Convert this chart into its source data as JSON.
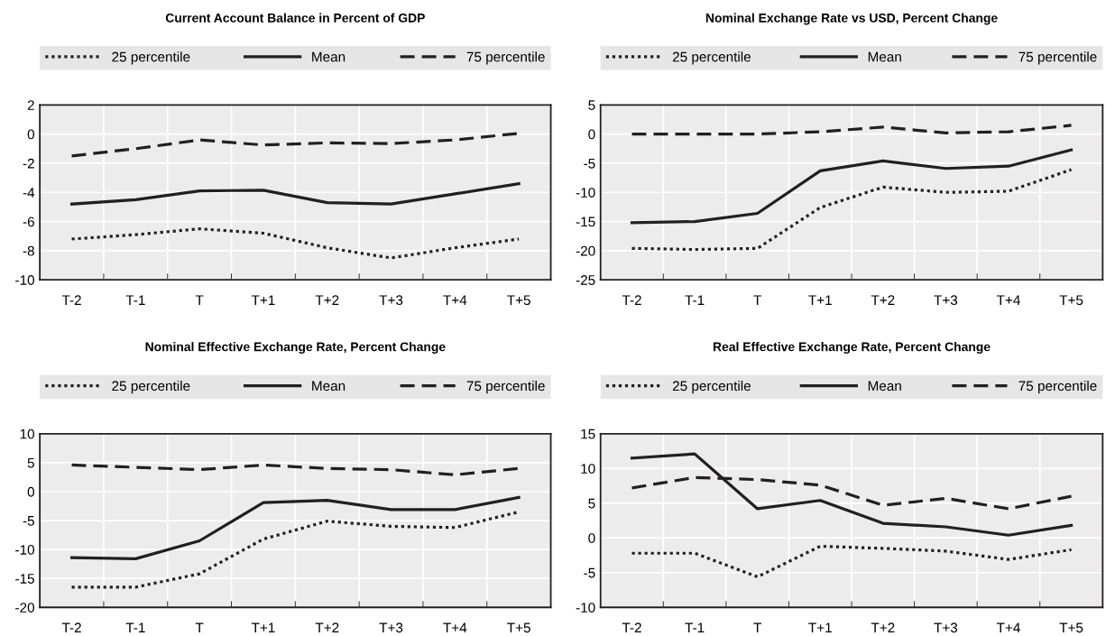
{
  "chart_data": [
    {
      "type": "line",
      "title": "Current Account Balance in Percent of GDP",
      "categories": [
        "T-2",
        "T-1",
        "T",
        "T+1",
        "T+2",
        "T+3",
        "T+4",
        "T+5"
      ],
      "ylim": [
        -10,
        2
      ],
      "yticks": [
        -10,
        -8,
        -6,
        -4,
        -2,
        0,
        2
      ],
      "grid": true,
      "legend": "top",
      "series": [
        {
          "name": "25 percentile",
          "color": "#231f20",
          "line_style": "dotted",
          "values": [
            -7.2,
            -6.9,
            -6.5,
            -6.8,
            -7.8,
            -8.5,
            -7.8,
            -7.2
          ]
        },
        {
          "name": "Mean",
          "color": "#231f20",
          "line_style": "solid",
          "values": [
            -4.8,
            -4.5,
            -3.9,
            -3.85,
            -4.7,
            -4.8,
            -4.1,
            -3.4
          ]
        },
        {
          "name": "75 percentile",
          "color": "#231f20",
          "line_style": "dashed",
          "values": [
            -1.5,
            -1.0,
            -0.4,
            -0.75,
            -0.6,
            -0.65,
            -0.4,
            0.05
          ]
        }
      ]
    },
    {
      "type": "line",
      "title": "Nominal Exchange Rate vs USD, Percent Change",
      "categories": [
        "T-2",
        "T-1",
        "T",
        "T+1",
        "T+2",
        "T+3",
        "T+4",
        "T+5"
      ],
      "ylim": [
        -25,
        5
      ],
      "yticks": [
        -25,
        -20,
        -15,
        -10,
        -5,
        0,
        5
      ],
      "grid": true,
      "legend": "top",
      "series": [
        {
          "name": "25 percentile",
          "color": "#231f20",
          "line_style": "dotted",
          "values": [
            -19.6,
            -19.8,
            -19.6,
            -12.6,
            -9.1,
            -10.0,
            -9.8,
            -6.1
          ]
        },
        {
          "name": "Mean",
          "color": "#231f20",
          "line_style": "solid",
          "values": [
            -15.2,
            -15.0,
            -13.6,
            -6.3,
            -4.6,
            -5.9,
            -5.5,
            -2.7
          ]
        },
        {
          "name": "75 percentile",
          "color": "#231f20",
          "line_style": "dashed",
          "values": [
            0.0,
            0.0,
            0.0,
            0.4,
            1.2,
            0.2,
            0.4,
            1.5
          ]
        }
      ]
    },
    {
      "type": "line",
      "title": "Nominal Effective Exchange Rate, Percent Change",
      "categories": [
        "T-2",
        "T-1",
        "T",
        "T+1",
        "T+2",
        "T+3",
        "T+4",
        "T+5"
      ],
      "ylim": [
        -20,
        10
      ],
      "yticks": [
        -20,
        -15,
        -10,
        -5,
        0,
        5,
        10
      ],
      "grid": true,
      "legend": "top",
      "series": [
        {
          "name": "25 percentile",
          "color": "#231f20",
          "line_style": "dotted",
          "values": [
            -16.5,
            -16.5,
            -14.2,
            -8.2,
            -5.1,
            -6.0,
            -6.2,
            -3.5
          ]
        },
        {
          "name": "Mean",
          "color": "#231f20",
          "line_style": "solid",
          "values": [
            -11.4,
            -11.6,
            -8.5,
            -1.9,
            -1.5,
            -3.1,
            -3.1,
            -1.0
          ]
        },
        {
          "name": "75 percentile",
          "color": "#231f20",
          "line_style": "dashed",
          "values": [
            4.6,
            4.2,
            3.8,
            4.6,
            4.0,
            3.8,
            2.9,
            4.0
          ]
        }
      ]
    },
    {
      "type": "line",
      "title": "Real Effective Exchange Rate, Percent Change",
      "categories": [
        "T-2",
        "T-1",
        "T",
        "T+1",
        "T+2",
        "T+3",
        "T+4",
        "T+5"
      ],
      "ylim": [
        -10,
        15
      ],
      "yticks": [
        -10,
        -5,
        0,
        5,
        10,
        15
      ],
      "grid": true,
      "legend": "top",
      "series": [
        {
          "name": "25 percentile",
          "color": "#231f20",
          "line_style": "dotted",
          "values": [
            -2.2,
            -2.2,
            -5.6,
            -1.2,
            -1.5,
            -1.9,
            -3.1,
            -1.7
          ]
        },
        {
          "name": "Mean",
          "color": "#231f20",
          "line_style": "solid",
          "values": [
            11.5,
            12.1,
            4.2,
            5.4,
            2.1,
            1.6,
            0.4,
            1.8
          ]
        },
        {
          "name": "75 percentile",
          "color": "#231f20",
          "line_style": "dashed",
          "values": [
            7.2,
            8.7,
            8.4,
            7.6,
            4.7,
            5.7,
            4.2,
            6.0
          ]
        }
      ]
    }
  ]
}
